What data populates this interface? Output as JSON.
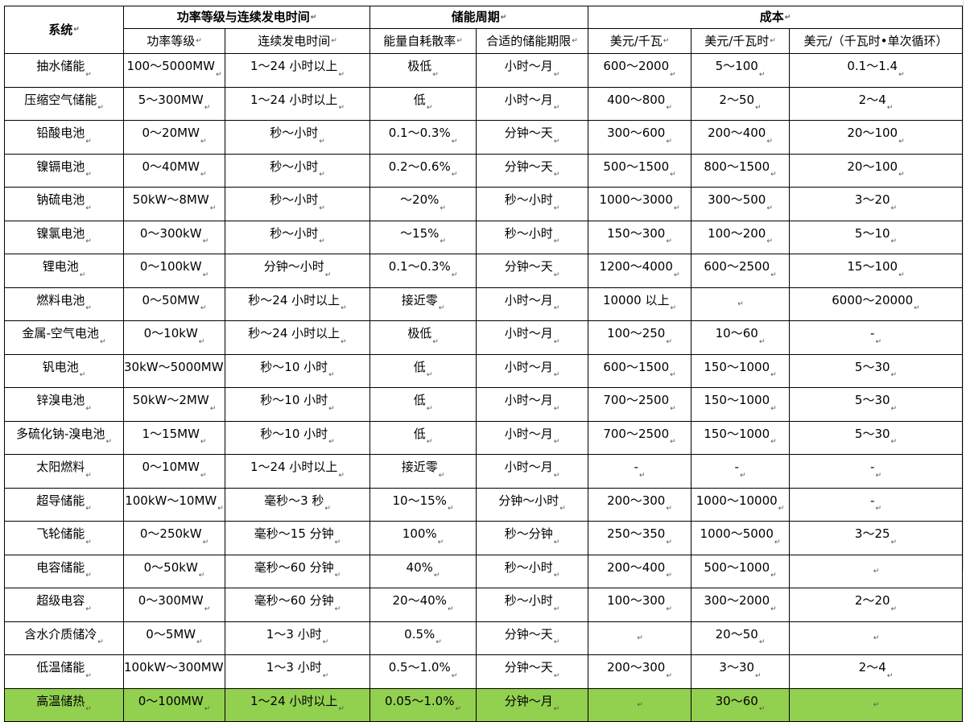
{
  "header": {
    "system": "系统",
    "group_power": "功率等级与连续发电时间",
    "group_cycle": "储能周期",
    "group_cost": "成本",
    "sub_power": "功率等级",
    "sub_duration": "连续发电时间",
    "sub_selfdischarge": "能量自耗散率",
    "sub_period": "合适的储能期限",
    "sub_cost_kw": "美元/千瓦",
    "sub_cost_kwh": "美元/千瓦时",
    "sub_cost_cycle": "美元/（千瓦时•单次循环）"
  },
  "rows": [
    {
      "system": "抽水储能",
      "power": "100～5000MW",
      "duration": "1～24 小时以上",
      "selfdischarge": "极低",
      "period": "小时～月",
      "cost_kw": "600～2000",
      "cost_kwh": "5～100",
      "cost_cycle": "0.1～1.4"
    },
    {
      "system": "压缩空气储能",
      "power": "5～300MW",
      "duration": "1～24 小时以上",
      "selfdischarge": "低",
      "period": "小时～月",
      "cost_kw": "400～800",
      "cost_kwh": "2～50",
      "cost_cycle": "2～4"
    },
    {
      "system": "铅酸电池",
      "power": "0～20MW",
      "duration": "秒～小时",
      "selfdischarge": "0.1～0.3%",
      "period": "分钟～天",
      "cost_kw": "300～600",
      "cost_kwh": "200～400",
      "cost_cycle": "20～100"
    },
    {
      "system": "镍镉电池",
      "power": "0～40MW",
      "duration": "秒～小时",
      "selfdischarge": "0.2～0.6%",
      "period": "分钟～天",
      "cost_kw": "500～1500",
      "cost_kwh": "800～1500",
      "cost_cycle": "20～100"
    },
    {
      "system": "钠硫电池",
      "power": "50kW～8MW",
      "duration": "秒～小时",
      "selfdischarge": "～20%",
      "period": "秒～小时",
      "cost_kw": "1000～3000",
      "cost_kwh": "300～500",
      "cost_cycle": "3～20"
    },
    {
      "system": "镍氯电池",
      "power": "0～300kW",
      "duration": "秒～小时",
      "selfdischarge": "～15%",
      "period": "秒～小时",
      "cost_kw": "150～300",
      "cost_kwh": "100～200",
      "cost_cycle": "5～10"
    },
    {
      "system": "锂电池",
      "power": "0～100kW",
      "duration": "分钟～小时",
      "selfdischarge": "0.1～0.3%",
      "period": "分钟～天",
      "cost_kw": "1200～4000",
      "cost_kwh": "600～2500",
      "cost_cycle": "15～100"
    },
    {
      "system": "燃料电池",
      "power": "0～50MW",
      "duration": "秒～24 小时以上",
      "selfdischarge": "接近零",
      "period": "小时～月",
      "cost_kw": "10000 以上",
      "cost_kwh": "",
      "cost_cycle": "6000～20000"
    },
    {
      "system": "金属-空气电池",
      "power": "0～10kW",
      "duration": "秒～24 小时以上",
      "selfdischarge": "极低",
      "period": "小时～月",
      "cost_kw": "100～250",
      "cost_kwh": "10～60",
      "cost_cycle": "-"
    },
    {
      "system": "钒电池",
      "power": "30kW～5000MW",
      "duration": "秒～10 小时",
      "selfdischarge": "低",
      "period": "小时～月",
      "cost_kw": "600～1500",
      "cost_kwh": "150～1000",
      "cost_cycle": "5～30"
    },
    {
      "system": "锌溴电池",
      "power": "50kW～2MW",
      "duration": "秒～10 小时",
      "selfdischarge": "低",
      "period": "小时～月",
      "cost_kw": "700～2500",
      "cost_kwh": "150～1000",
      "cost_cycle": "5～30"
    },
    {
      "system": "多硫化钠-溴电池",
      "power": "1～15MW",
      "duration": "秒～10 小时",
      "selfdischarge": "低",
      "period": "小时～月",
      "cost_kw": "700～2500",
      "cost_kwh": "150～1000",
      "cost_cycle": "5～30"
    },
    {
      "system": "太阳燃料",
      "power": "0～10MW",
      "duration": "1～24 小时以上",
      "selfdischarge": "接近零",
      "period": "小时～月",
      "cost_kw": "-",
      "cost_kwh": "-",
      "cost_cycle": "-"
    },
    {
      "system": "超导储能",
      "power": "100kW～10MW",
      "duration": "毫秒～3 秒",
      "selfdischarge": "10～15%",
      "period": "分钟～小时",
      "cost_kw": "200～300",
      "cost_kwh": "1000～10000",
      "cost_cycle": "-"
    },
    {
      "system": "飞轮储能",
      "power": "0～250kW",
      "duration": "毫秒～15 分钟",
      "selfdischarge": "100%",
      "period": "秒～分钟",
      "cost_kw": "250～350",
      "cost_kwh": "1000～5000",
      "cost_cycle": "3～25"
    },
    {
      "system": "电容储能",
      "power": "0～50kW",
      "duration": "毫秒～60 分钟",
      "selfdischarge": "40%",
      "period": "秒～小时",
      "cost_kw": "200～400",
      "cost_kwh": "500～1000",
      "cost_cycle": ""
    },
    {
      "system": "超级电容",
      "power": "0～300MW",
      "duration": "毫秒～60 分钟",
      "selfdischarge": "20～40%",
      "period": "秒～小时",
      "cost_kw": "100～300",
      "cost_kwh": "300～2000",
      "cost_cycle": "2～20"
    },
    {
      "system": "含水介质储冷",
      "power": "0～5MW",
      "duration": "1～3 小时",
      "selfdischarge": "0.5%",
      "period": "分钟～天",
      "cost_kw": "",
      "cost_kwh": "20～50",
      "cost_cycle": ""
    },
    {
      "system": "低温储能",
      "power": "100kW～300MW",
      "duration": "1～3 小时",
      "selfdischarge": "0.5～1.0%",
      "period": "分钟～天",
      "cost_kw": "200～300",
      "cost_kwh": "3～30",
      "cost_cycle": "2～4"
    },
    {
      "system": "高温储热",
      "power": "0～100MW",
      "duration": "1～24 小时以上",
      "selfdischarge": "0.05～1.0%",
      "period": "分钟～月",
      "cost_kw": "",
      "cost_kwh": "30～60",
      "cost_cycle": ""
    }
  ],
  "styles": {
    "highlight_row_color": "#92d050",
    "border_color": "#000000"
  },
  "icons": {
    "paragraph_mark": "↵"
  }
}
